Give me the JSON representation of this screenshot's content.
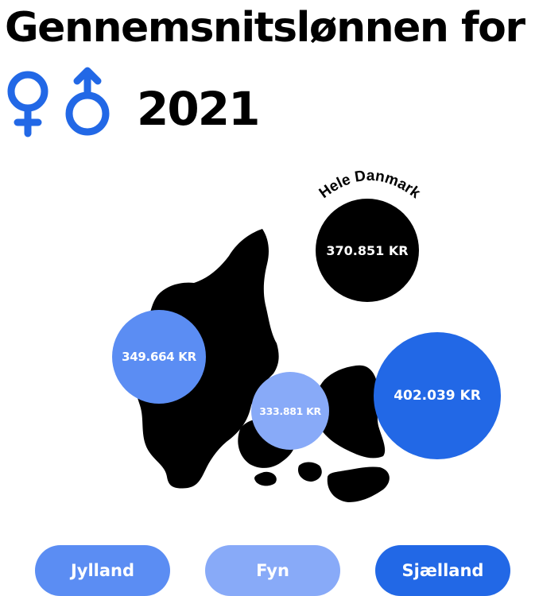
{
  "header": {
    "title": "Gennemsnitslønnen for",
    "year": "2021"
  },
  "icons": {
    "female": "female-symbol-icon",
    "male": "male-symbol-icon",
    "color": "#2268e6"
  },
  "regions": {
    "all": {
      "label": "Hele Danmark",
      "value": "370.851 KR",
      "color": "#000000"
    },
    "jylland": {
      "label": "Jylland",
      "value": "349.664 KR",
      "color": "#5b8df3"
    },
    "fyn": {
      "label": "Fyn",
      "value": "333.881 KR",
      "color": "#88aaf8"
    },
    "sjaelland": {
      "label": "Sjælland",
      "value": "402.039 KR",
      "color": "#2268e6"
    }
  }
}
